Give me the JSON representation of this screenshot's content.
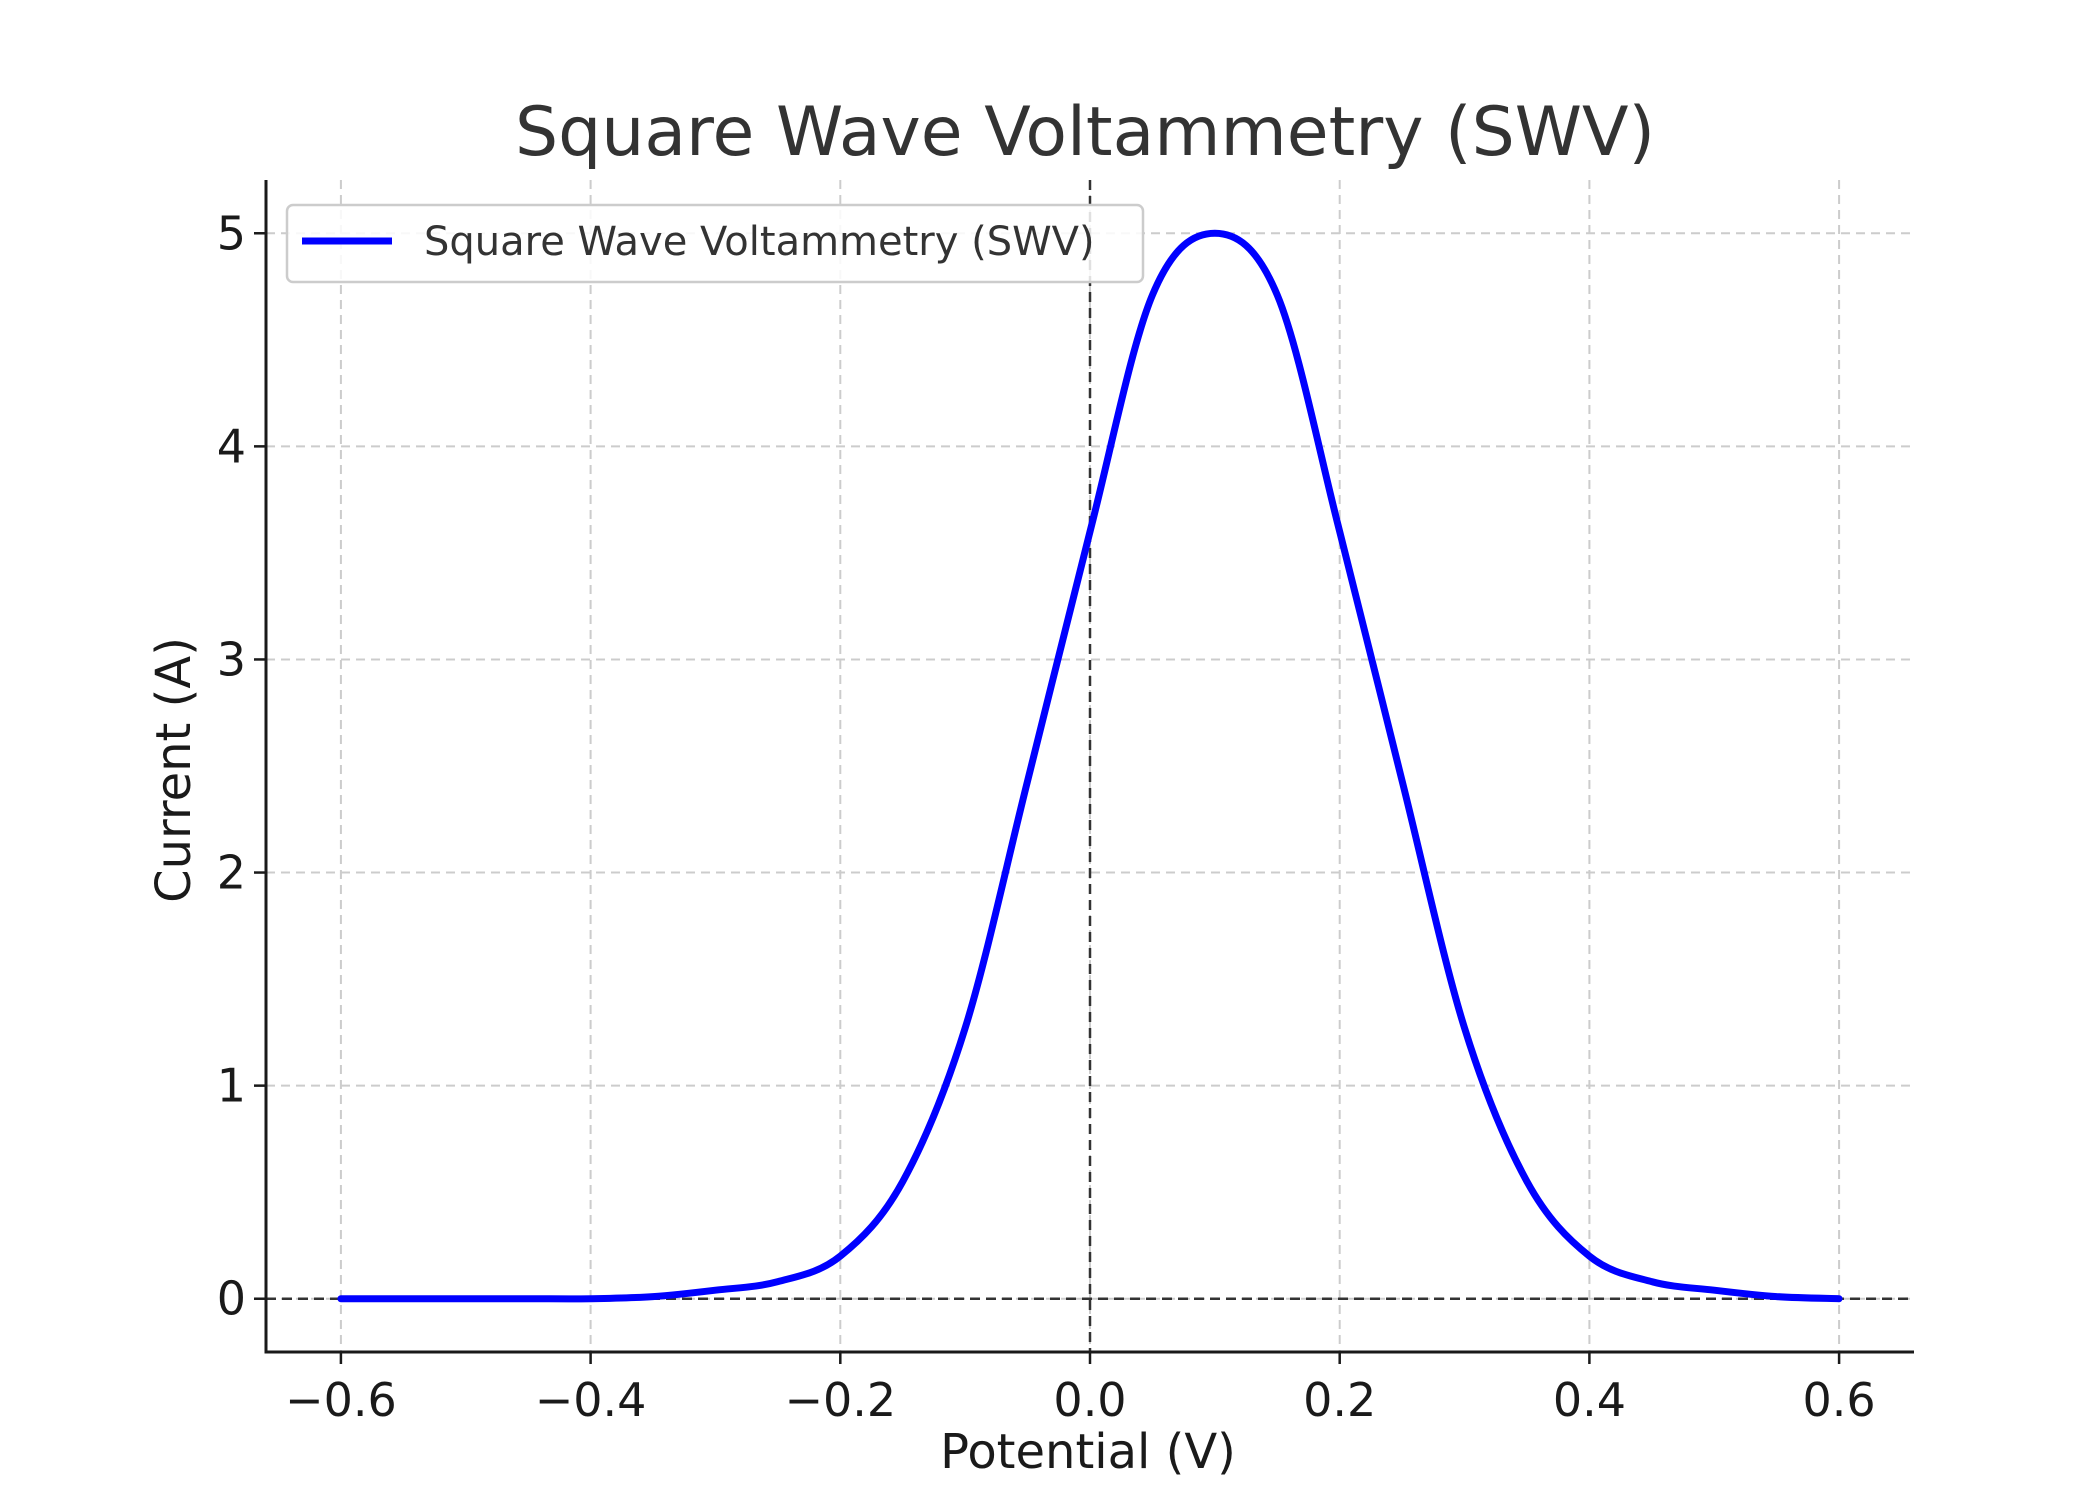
{
  "chart_data": {
    "type": "line",
    "title": "Square Wave Voltammetry (SWV)",
    "xlabel": "Potential (V)",
    "ylabel": "Current (A)",
    "xlim": [
      -0.66,
      0.66
    ],
    "ylim": [
      -0.25,
      5.25
    ],
    "xticks": [
      -0.6,
      -0.4,
      -0.2,
      0.0,
      0.2,
      0.4,
      0.6
    ],
    "xtick_labels": [
      "−0.6",
      "−0.4",
      "−0.2",
      "0.0",
      "0.2",
      "0.4",
      "0.6"
    ],
    "yticks": [
      0,
      1,
      2,
      3,
      4,
      5
    ],
    "ytick_labels": [
      "0",
      "1",
      "2",
      "3",
      "4",
      "5"
    ],
    "grid": true,
    "legend": {
      "position": "upper-left"
    },
    "reference_lines": {
      "x": 0,
      "y": 0
    },
    "series": [
      {
        "name": "Square Wave Voltammetry (SWV)",
        "color": "#0000ff",
        "x": [
          -0.6,
          -0.55,
          -0.5,
          -0.45,
          -0.4,
          -0.35,
          -0.3,
          -0.25,
          -0.2,
          -0.15,
          -0.1,
          -0.05,
          0.0,
          0.05,
          0.1,
          0.15,
          0.2,
          0.25,
          0.3,
          0.35,
          0.4,
          0.45,
          0.5,
          0.55,
          0.6
        ],
        "y": [
          0.0,
          0.0,
          0.0,
          0.0,
          0.0,
          0.01,
          0.04,
          0.08,
          0.2,
          0.55,
          1.27,
          2.43,
          3.6,
          4.71,
          5.0,
          4.71,
          3.6,
          2.43,
          1.27,
          0.55,
          0.2,
          0.08,
          0.04,
          0.01,
          0.0
        ]
      }
    ]
  },
  "colors": {
    "line": "#0000ff",
    "grid": "#cccccc",
    "axis": "#1a1a1a",
    "reference": "#333333"
  }
}
